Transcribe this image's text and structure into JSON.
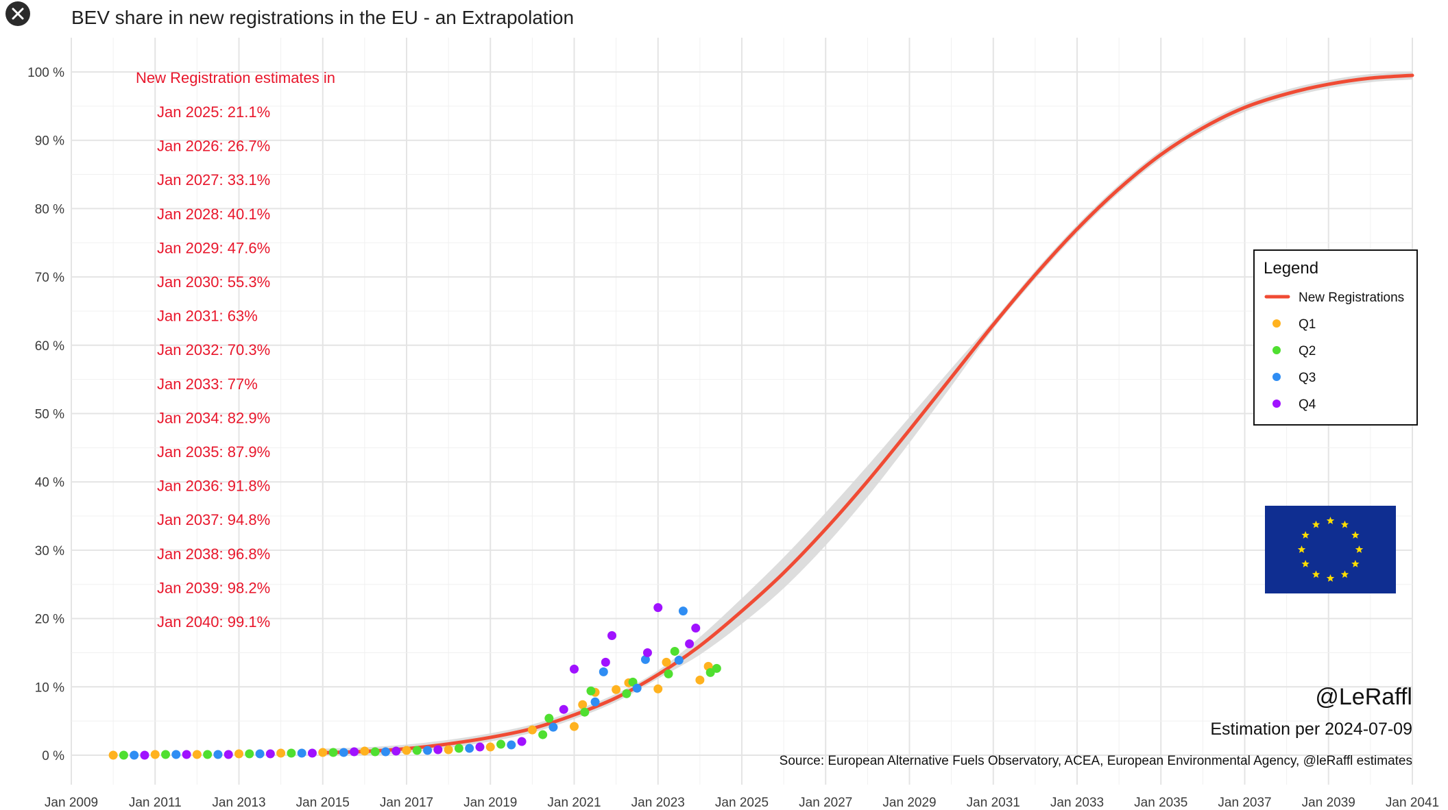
{
  "ui": {
    "close_icon": "close-icon"
  },
  "chart_data": {
    "type": "line",
    "title": "BEV share in new registrations in the EU - an Extrapolation",
    "xlabel": "",
    "ylabel": "",
    "xlim": [
      "2009-01-01",
      "2041-01-01"
    ],
    "ylim": [
      -5,
      104
    ],
    "grid": true,
    "legend_placement": "right",
    "x_tick_labels": [
      "Jan 2009",
      "Jan 2011",
      "Jan 2013",
      "Jan 2015",
      "Jan 2017",
      "Jan 2019",
      "Jan 2021",
      "Jan 2023",
      "Jan 2025",
      "Jan 2027",
      "Jan 2029",
      "Jan 2031",
      "Jan 2033",
      "Jan 2035",
      "Jan 2037",
      "Jan 2039",
      "Jan 2041"
    ],
    "y_tick_labels": [
      "0 %",
      "10 %",
      "20 %",
      "30 %",
      "40 %",
      "50 %",
      "60 %",
      "70 %",
      "80 %",
      "90 %",
      "100 %"
    ],
    "legend": {
      "title": "Legend",
      "entries": [
        {
          "label": "New Registrations",
          "type": "line",
          "color": "#f04b34"
        },
        {
          "label": "Q1",
          "type": "point",
          "color": "#ffb21f"
        },
        {
          "label": "Q2",
          "type": "point",
          "color": "#4fdf30"
        },
        {
          "label": "Q3",
          "type": "point",
          "color": "#2f8df3"
        },
        {
          "label": "Q4",
          "type": "point",
          "color": "#a012ff"
        }
      ]
    },
    "annotations": {
      "heading": "New Registration estimates in",
      "estimates": [
        "Jan 2025: 21.1%",
        "Jan 2026: 26.7%",
        "Jan 2027: 33.1%",
        "Jan 2028: 40.1%",
        "Jan 2029: 47.6%",
        "Jan 2030: 55.3%",
        "Jan 2031: 63%",
        "Jan 2032: 70.3%",
        "Jan 2033: 77%",
        "Jan 2034: 82.9%",
        "Jan 2035: 87.9%",
        "Jan 2036: 91.8%",
        "Jan 2037: 94.8%",
        "Jan 2038: 96.8%",
        "Jan 2039: 98.2%",
        "Jan 2040: 99.1%"
      ],
      "handle": "@LeRaffl",
      "estimation": "Estimation per 2024-07-09",
      "source": "Source: European Alternative Fuels Observatory, ACEA, European Environmental Agency, @leRaffl estimates"
    },
    "series": [
      {
        "name": "New Registrations",
        "type": "line",
        "color": "#f04b34",
        "points": [
          {
            "x": 2015.0,
            "y": 0.35
          },
          {
            "x": 2016.0,
            "y": 0.55
          },
          {
            "x": 2017.0,
            "y": 0.95
          },
          {
            "x": 2018.0,
            "y": 1.65
          },
          {
            "x": 2019.0,
            "y": 2.6
          },
          {
            "x": 2020.0,
            "y": 3.9
          },
          {
            "x": 2021.0,
            "y": 5.9
          },
          {
            "x": 2022.0,
            "y": 8.4
          },
          {
            "x": 2023.0,
            "y": 11.8
          },
          {
            "x": 2024.0,
            "y": 16.0
          },
          {
            "x": 2025.0,
            "y": 21.1
          },
          {
            "x": 2026.0,
            "y": 26.7
          },
          {
            "x": 2027.0,
            "y": 33.1
          },
          {
            "x": 2028.0,
            "y": 40.1
          },
          {
            "x": 2029.0,
            "y": 47.6
          },
          {
            "x": 2030.0,
            "y": 55.3
          },
          {
            "x": 2031.0,
            "y": 63.0
          },
          {
            "x": 2032.0,
            "y": 70.3
          },
          {
            "x": 2033.0,
            "y": 77.0
          },
          {
            "x": 2034.0,
            "y": 82.9
          },
          {
            "x": 2035.0,
            "y": 87.9
          },
          {
            "x": 2036.0,
            "y": 91.8
          },
          {
            "x": 2037.0,
            "y": 94.8
          },
          {
            "x": 2038.0,
            "y": 96.8
          },
          {
            "x": 2039.0,
            "y": 98.2
          },
          {
            "x": 2040.0,
            "y": 99.1
          },
          {
            "x": 2041.0,
            "y": 99.5
          }
        ]
      },
      {
        "name": "Q1",
        "type": "scatter",
        "color": "#ffb21f",
        "points": [
          {
            "x": 2010.0,
            "y": 0.0
          },
          {
            "x": 2011.0,
            "y": 0.1
          },
          {
            "x": 2012.0,
            "y": 0.1
          },
          {
            "x": 2013.0,
            "y": 0.2
          },
          {
            "x": 2014.0,
            "y": 0.3
          },
          {
            "x": 2015.0,
            "y": 0.4
          },
          {
            "x": 2016.0,
            "y": 0.6
          },
          {
            "x": 2017.0,
            "y": 0.7
          },
          {
            "x": 2018.0,
            "y": 0.8
          },
          {
            "x": 2019.0,
            "y": 1.2
          },
          {
            "x": 2020.0,
            "y": 3.7
          },
          {
            "x": 2021.0,
            "y": 4.2
          },
          {
            "x": 2021.2,
            "y": 7.4
          },
          {
            "x": 2021.5,
            "y": 9.2
          },
          {
            "x": 2022.0,
            "y": 9.6
          },
          {
            "x": 2022.3,
            "y": 10.6
          },
          {
            "x": 2023.0,
            "y": 9.7
          },
          {
            "x": 2023.2,
            "y": 13.6
          },
          {
            "x": 2024.0,
            "y": 11.0
          },
          {
            "x": 2024.2,
            "y": 13.0
          }
        ]
      },
      {
        "name": "Q2",
        "type": "scatter",
        "color": "#4fdf30",
        "points": [
          {
            "x": 2010.25,
            "y": 0.0
          },
          {
            "x": 2011.25,
            "y": 0.1
          },
          {
            "x": 2012.25,
            "y": 0.1
          },
          {
            "x": 2013.25,
            "y": 0.2
          },
          {
            "x": 2014.25,
            "y": 0.3
          },
          {
            "x": 2015.25,
            "y": 0.4
          },
          {
            "x": 2016.25,
            "y": 0.5
          },
          {
            "x": 2017.25,
            "y": 0.7
          },
          {
            "x": 2018.25,
            "y": 1.0
          },
          {
            "x": 2019.25,
            "y": 1.6
          },
          {
            "x": 2020.25,
            "y": 3.0
          },
          {
            "x": 2020.4,
            "y": 5.4
          },
          {
            "x": 2021.25,
            "y": 6.3
          },
          {
            "x": 2021.4,
            "y": 9.4
          },
          {
            "x": 2022.25,
            "y": 9.0
          },
          {
            "x": 2022.4,
            "y": 10.7
          },
          {
            "x": 2023.25,
            "y": 11.9
          },
          {
            "x": 2023.4,
            "y": 15.2
          },
          {
            "x": 2024.25,
            "y": 12.1
          },
          {
            "x": 2024.4,
            "y": 12.7
          }
        ]
      },
      {
        "name": "Q3",
        "type": "scatter",
        "color": "#2f8df3",
        "points": [
          {
            "x": 2010.5,
            "y": 0.0
          },
          {
            "x": 2011.5,
            "y": 0.1
          },
          {
            "x": 2012.5,
            "y": 0.1
          },
          {
            "x": 2013.5,
            "y": 0.2
          },
          {
            "x": 2014.5,
            "y": 0.3
          },
          {
            "x": 2015.5,
            "y": 0.4
          },
          {
            "x": 2016.5,
            "y": 0.5
          },
          {
            "x": 2017.5,
            "y": 0.7
          },
          {
            "x": 2018.5,
            "y": 1.0
          },
          {
            "x": 2019.5,
            "y": 1.5
          },
          {
            "x": 2020.5,
            "y": 4.1
          },
          {
            "x": 2021.5,
            "y": 7.8
          },
          {
            "x": 2021.7,
            "y": 12.2
          },
          {
            "x": 2022.5,
            "y": 9.8
          },
          {
            "x": 2022.7,
            "y": 14.0
          },
          {
            "x": 2023.5,
            "y": 13.9
          },
          {
            "x": 2023.6,
            "y": 21.1
          }
        ]
      },
      {
        "name": "Q4",
        "type": "scatter",
        "color": "#a012ff",
        "points": [
          {
            "x": 2010.75,
            "y": 0.0
          },
          {
            "x": 2011.75,
            "y": 0.1
          },
          {
            "x": 2012.75,
            "y": 0.1
          },
          {
            "x": 2013.75,
            "y": 0.2
          },
          {
            "x": 2014.75,
            "y": 0.3
          },
          {
            "x": 2015.75,
            "y": 0.5
          },
          {
            "x": 2016.75,
            "y": 0.6
          },
          {
            "x": 2017.75,
            "y": 0.8
          },
          {
            "x": 2018.75,
            "y": 1.2
          },
          {
            "x": 2019.75,
            "y": 2.0
          },
          {
            "x": 2020.75,
            "y": 6.7
          },
          {
            "x": 2021.0,
            "y": 12.6
          },
          {
            "x": 2021.75,
            "y": 13.6
          },
          {
            "x": 2021.9,
            "y": 17.5
          },
          {
            "x": 2022.75,
            "y": 15.0
          },
          {
            "x": 2023.0,
            "y": 21.6
          },
          {
            "x": 2023.75,
            "y": 16.3
          },
          {
            "x": 2023.9,
            "y": 18.6
          }
        ]
      }
    ]
  }
}
